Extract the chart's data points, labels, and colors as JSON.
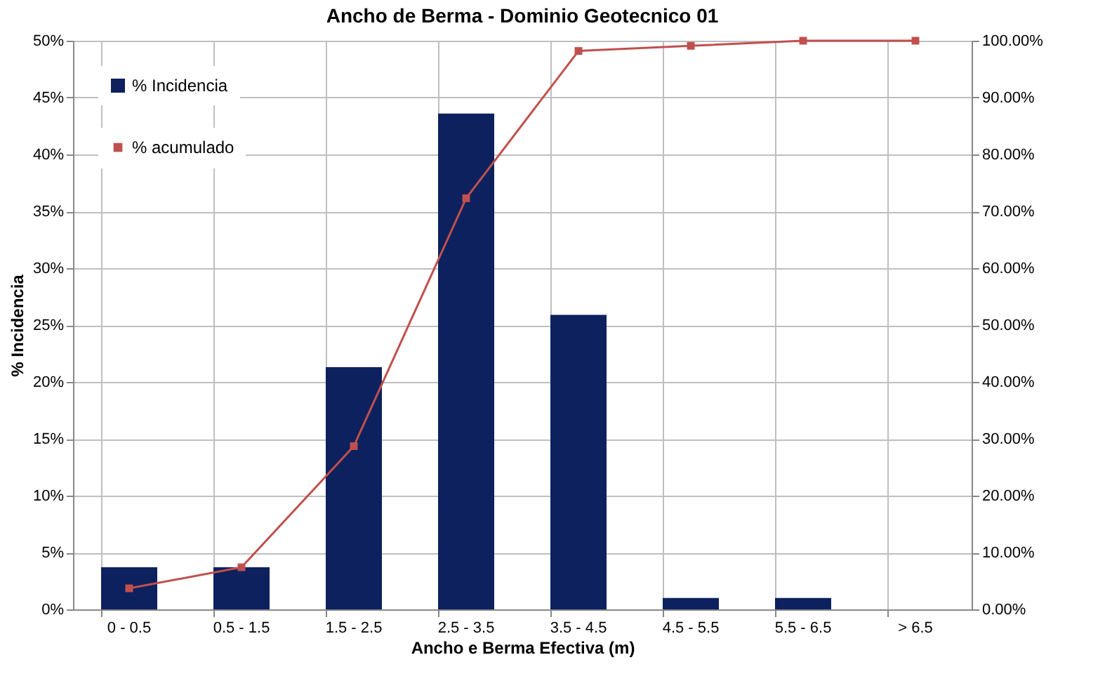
{
  "chart_data": {
    "type": "bar",
    "title": "Ancho de Berma - Dominio Geotecnico 01",
    "xlabel": "Ancho e Berma Efectiva (m)",
    "ylabel": "% Incidencia",
    "categories": [
      "0 - 0.5",
      "0.5 - 1.5",
      "1.5 - 2.5",
      "2.5 - 3.5",
      "3.5 - 4.5",
      "4.5 - 5.5",
      "5.5 - 6.5",
      "> 6.5"
    ],
    "series": [
      {
        "name": "% Incidencia",
        "color": "#0c215e",
        "values": [
          3.7,
          3.7,
          21.3,
          43.6,
          25.9,
          1.0,
          1.0,
          0
        ]
      },
      {
        "name": "% acumulado",
        "type": "line",
        "axis": "y2",
        "color": "#c0504d",
        "marker": "square",
        "values": [
          3.7,
          7.4,
          28.7,
          72.3,
          98.2,
          99.1,
          100,
          100
        ]
      }
    ],
    "ylim": [
      0,
      50
    ],
    "yticks": [
      {
        "value": 0,
        "label": "0%"
      },
      {
        "value": 5,
        "label": "5%"
      },
      {
        "value": 10,
        "label": "10%"
      },
      {
        "value": 15,
        "label": "15%"
      },
      {
        "value": 20,
        "label": "20%"
      },
      {
        "value": 25,
        "label": "25%"
      },
      {
        "value": 30,
        "label": "30%"
      },
      {
        "value": 35,
        "label": "35%"
      },
      {
        "value": 40,
        "label": "40%"
      },
      {
        "value": 45,
        "label": "45%"
      },
      {
        "value": 50,
        "label": "50%"
      }
    ],
    "y2lim": [
      0,
      100
    ],
    "y2ticks": [
      {
        "value": 0,
        "label": "0.00%"
      },
      {
        "value": 10,
        "label": "10.00%"
      },
      {
        "value": 20,
        "label": "20.00%"
      },
      {
        "value": 30,
        "label": "30.00%"
      },
      {
        "value": 40,
        "label": "40.00%"
      },
      {
        "value": 50,
        "label": "50.00%"
      },
      {
        "value": 60,
        "label": "60.00%"
      },
      {
        "value": 70,
        "label": "70.00%"
      },
      {
        "value": 80,
        "label": "80.00%"
      },
      {
        "value": 90,
        "label": "90.00%"
      },
      {
        "value": 100,
        "label": "100.00%"
      }
    ],
    "grid": true,
    "legend": "top left"
  }
}
